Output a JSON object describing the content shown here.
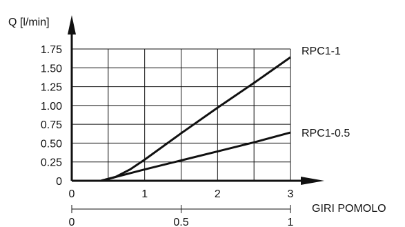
{
  "chart_data": {
    "type": "line",
    "ylabel": "Q [l/min]",
    "xlabel": "GIRI POMOLO",
    "xlim": [
      0,
      3
    ],
    "ylim": [
      0,
      1.75
    ],
    "x_ticks": [
      "0",
      "1",
      "2",
      "3"
    ],
    "y_ticks": [
      "0",
      "0.25",
      "0.50",
      "0.75",
      "1.00",
      "1.25",
      "1.50",
      "1.75"
    ],
    "secondary_x_ticks": [
      "0",
      "0.5",
      "1"
    ],
    "grid": true,
    "series": [
      {
        "name": "RPC1-1",
        "x": [
          0.4,
          0.6,
          0.8,
          1.0,
          1.5,
          2.0,
          2.5,
          3.0
        ],
        "y": [
          0.0,
          0.05,
          0.15,
          0.28,
          0.63,
          0.97,
          1.3,
          1.64
        ]
      },
      {
        "name": "RPC1-0.5",
        "x": [
          0.4,
          0.6,
          0.8,
          1.0,
          1.5,
          2.0,
          2.5,
          3.0
        ],
        "y": [
          0.0,
          0.05,
          0.1,
          0.15,
          0.27,
          0.39,
          0.51,
          0.64
        ]
      }
    ]
  }
}
